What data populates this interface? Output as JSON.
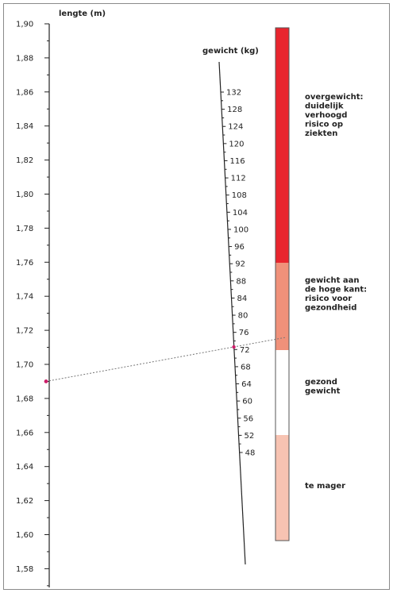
{
  "titles": {
    "height_axis": "lengte (m)",
    "weight_axis": "gewicht (kg)"
  },
  "height_scale": {
    "min": 1.57,
    "max": 1.9,
    "label_step": 0.02,
    "labels": [
      "1,90",
      "1,88",
      "1,86",
      "1,84",
      "1,82",
      "1,80",
      "1,78",
      "1,76",
      "1,74",
      "1,72",
      "1,70",
      "1,68",
      "1,66",
      "1,64",
      "1,62",
      "1,60",
      "1,58"
    ]
  },
  "weight_scale": {
    "labels": [
      "132",
      "128",
      "124",
      "120",
      "116",
      "112",
      "108",
      "104",
      "100",
      "96",
      "92",
      "88",
      "84",
      "80",
      "76",
      "72",
      "68",
      "64",
      "60",
      "56",
      "52",
      "48"
    ]
  },
  "bmi_bar": {
    "zones": [
      {
        "id": "overgewicht",
        "lines": [
          "overgewicht:",
          "duidelijk",
          "verhoogd",
          "risico op",
          "ziekten"
        ],
        "color": "#e8252e"
      },
      {
        "id": "hoge-kant",
        "lines": [
          "gewicht aan",
          "de hoge kant:",
          "risico voor",
          "gezondheid"
        ],
        "color": "#f0917a"
      },
      {
        "id": "gezond",
        "lines": [
          "gezond",
          "gewicht"
        ],
        "color": "#ffffff"
      },
      {
        "id": "mager",
        "lines": [
          "te mager"
        ],
        "color": "#f7c3b2"
      }
    ]
  },
  "example_line": {
    "height_m": 1.69,
    "weight_kg": 72,
    "color": "#cc1f6a"
  }
}
